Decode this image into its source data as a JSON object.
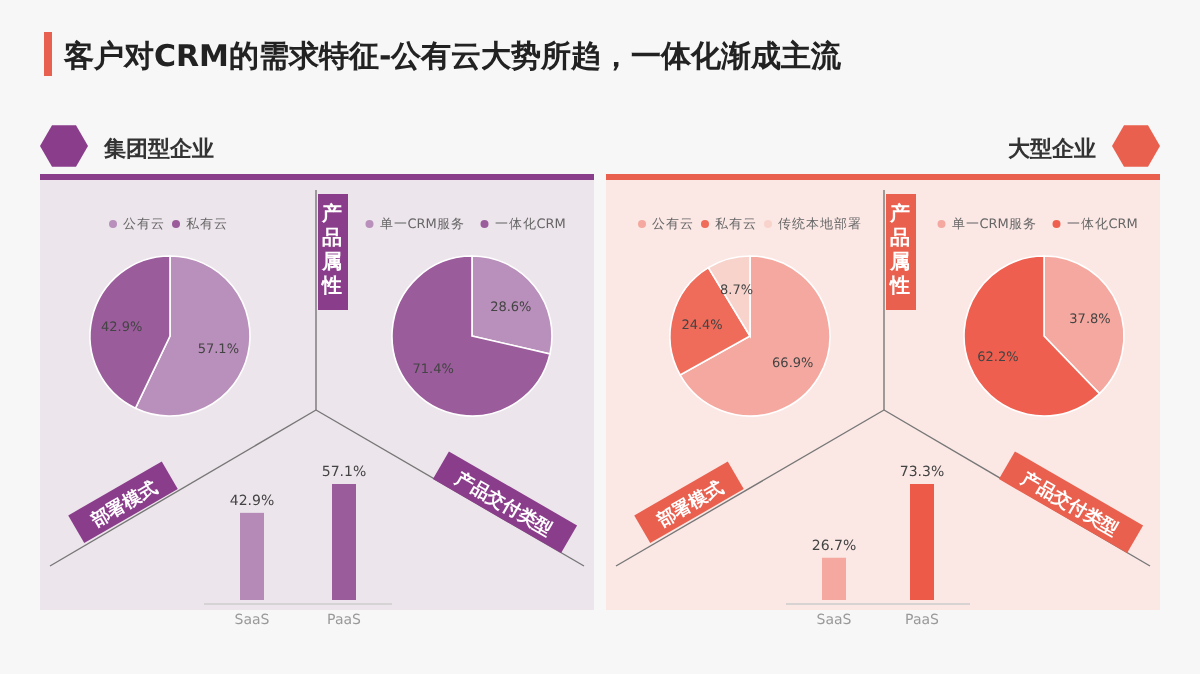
{
  "chart_data": [
    {
      "type": "pie",
      "title": "客户对CRM的需求特征-公有云大势所趋，一体化渐成主流",
      "subtitle": "集团型企业",
      "categories": [
        "公有云",
        "私有云"
      ],
      "values": [
        57.1,
        42.9
      ],
      "colors": [
        "#b98fbb",
        "#9b5c9c"
      ],
      "value_labels": [
        "57.1%",
        "42.9%"
      ],
      "legend": "top",
      "annotations": [
        "产品属性",
        "部署模式",
        "产品交付类型"
      ]
    },
    {
      "type": "pie",
      "categories": [
        "单一CRM服务",
        "一体化CRM"
      ],
      "values": [
        28.6,
        71.4
      ],
      "colors": [
        "#b98fbb",
        "#9b5c9c"
      ],
      "value_labels": [
        "28.6%",
        "71.4%"
      ],
      "legend": "top"
    },
    {
      "type": "bar",
      "categories": [
        "SaaS",
        "PaaS"
      ],
      "values": [
        42.9,
        57.1
      ],
      "colors": [
        "#b58ab6",
        "#9b5c9c"
      ],
      "value_labels": [
        "42.9%",
        "57.1%"
      ]
    },
    {
      "type": "pie",
      "categories": [
        "公有云",
        "私有云",
        "传统本地部署"
      ],
      "values": [
        66.9,
        24.4,
        8.7
      ],
      "colors": [
        "#f5a89f",
        "#ef6b5a",
        "#f8d3cc"
      ],
      "value_labels": [
        "66.9%",
        "24.4%",
        "8.7%"
      ],
      "legend": "top",
      "annotations": [
        "产品属性",
        "部署模式",
        "产品交付类型"
      ]
    },
    {
      "type": "pie",
      "categories": [
        "单一CRM服务",
        "一体化CRM"
      ],
      "values": [
        37.8,
        62.2
      ],
      "subtitle": "大型企业",
      "colors": [
        "#f5a89f",
        "#ef5f4f"
      ],
      "value_labels": [
        "37.8%",
        "62.2%"
      ],
      "legend": "top"
    },
    {
      "type": "bar",
      "categories": [
        "SaaS",
        "PaaS"
      ],
      "values": [
        26.7,
        73.3
      ],
      "colors": [
        "#f5a89f",
        "#ee5a48"
      ],
      "value_labels": [
        "26.7%",
        "73.3%"
      ]
    }
  ]
}
